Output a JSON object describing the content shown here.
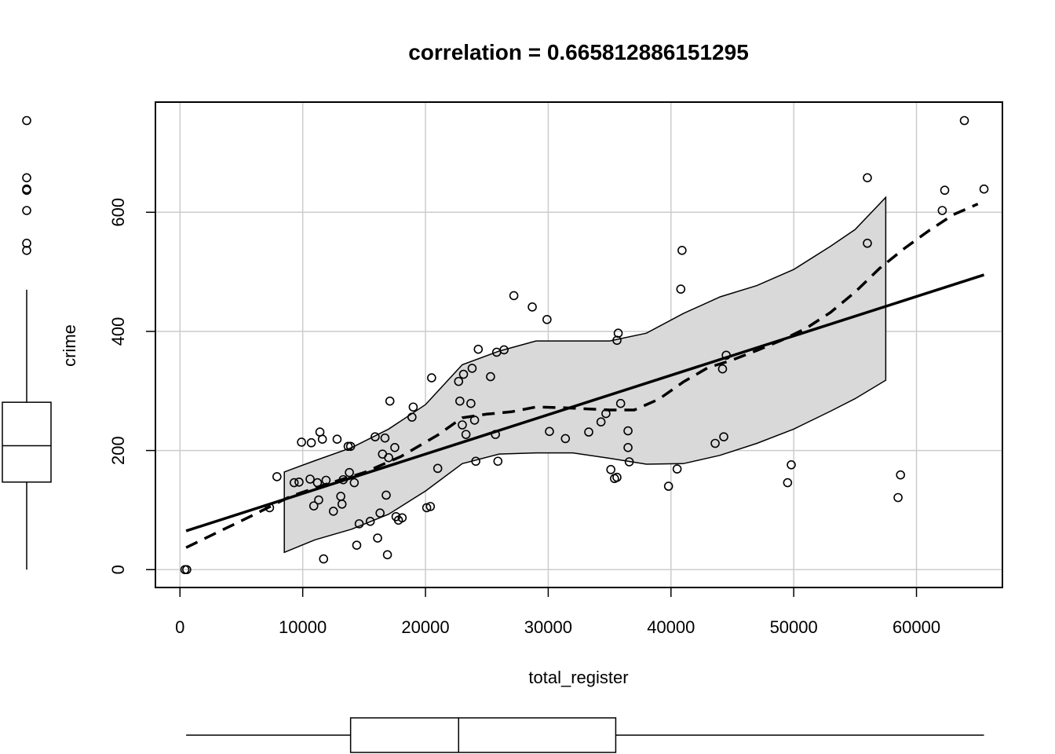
{
  "chart_data": {
    "type": "scatter",
    "title": "correlation =  0.665812886151295",
    "xlabel": "total_register",
    "ylabel": "crime",
    "xlim": [
      -2000,
      67000
    ],
    "ylim": [
      -30,
      785
    ],
    "x_ticks": [
      0,
      10000,
      20000,
      30000,
      40000,
      50000,
      60000
    ],
    "y_ticks": [
      0,
      200,
      400,
      600
    ],
    "x_tick_labels": [
      "0",
      "10000",
      "20000",
      "30000",
      "40000",
      "50000",
      "60000"
    ],
    "y_tick_labels": [
      "0",
      "200",
      "400",
      "600"
    ],
    "grid": true,
    "points": [
      [
        400,
        0
      ],
      [
        550,
        0
      ],
      [
        7300,
        104
      ],
      [
        7900,
        156
      ],
      [
        9300,
        146
      ],
      [
        9700,
        147
      ],
      [
        9900,
        214
      ],
      [
        10600,
        152
      ],
      [
        10700,
        213
      ],
      [
        10900,
        107
      ],
      [
        11200,
        146
      ],
      [
        11300,
        117
      ],
      [
        11400,
        231
      ],
      [
        11600,
        219
      ],
      [
        11700,
        18
      ],
      [
        11900,
        150
      ],
      [
        12500,
        98
      ],
      [
        12800,
        219
      ],
      [
        13100,
        123
      ],
      [
        13200,
        110
      ],
      [
        13300,
        151
      ],
      [
        13700,
        207
      ],
      [
        13900,
        207
      ],
      [
        13800,
        163
      ],
      [
        14200,
        146
      ],
      [
        14400,
        41
      ],
      [
        14600,
        77
      ],
      [
        15500,
        81
      ],
      [
        15900,
        223
      ],
      [
        16100,
        53
      ],
      [
        16300,
        95
      ],
      [
        16500,
        194
      ],
      [
        16700,
        221
      ],
      [
        16800,
        125
      ],
      [
        16900,
        25
      ],
      [
        17000,
        188
      ],
      [
        17100,
        283
      ],
      [
        17500,
        205
      ],
      [
        17600,
        89
      ],
      [
        17800,
        83
      ],
      [
        18100,
        87
      ],
      [
        18900,
        256
      ],
      [
        19000,
        273
      ],
      [
        20100,
        104
      ],
      [
        20400,
        106
      ],
      [
        20500,
        322
      ],
      [
        21000,
        170
      ],
      [
        22700,
        316
      ],
      [
        22800,
        283
      ],
      [
        23000,
        243
      ],
      [
        23100,
        328
      ],
      [
        23300,
        227
      ],
      [
        23700,
        279
      ],
      [
        23800,
        338
      ],
      [
        24000,
        251
      ],
      [
        24100,
        182
      ],
      [
        24300,
        370
      ],
      [
        25300,
        324
      ],
      [
        25700,
        227
      ],
      [
        25800,
        365
      ],
      [
        25900,
        182
      ],
      [
        26400,
        369
      ],
      [
        27200,
        460
      ],
      [
        28700,
        441
      ],
      [
        29900,
        420
      ],
      [
        30100,
        232
      ],
      [
        31400,
        220
      ],
      [
        33300,
        231
      ],
      [
        34300,
        248
      ],
      [
        34700,
        262
      ],
      [
        35100,
        168
      ],
      [
        35400,
        153
      ],
      [
        35600,
        155
      ],
      [
        35600,
        385
      ],
      [
        35700,
        397
      ],
      [
        35900,
        279
      ],
      [
        36500,
        233
      ],
      [
        36500,
        205
      ],
      [
        36600,
        181
      ],
      [
        39800,
        140
      ],
      [
        40500,
        169
      ],
      [
        40800,
        471
      ],
      [
        40900,
        536
      ],
      [
        43600,
        212
      ],
      [
        44200,
        337
      ],
      [
        44300,
        223
      ],
      [
        44500,
        360
      ],
      [
        49500,
        146
      ],
      [
        49800,
        176
      ],
      [
        56000,
        658
      ],
      [
        56000,
        548
      ],
      [
        58500,
        121
      ],
      [
        58700,
        159
      ],
      [
        62100,
        603
      ],
      [
        62300,
        637
      ],
      [
        63900,
        754
      ],
      [
        65500,
        639
      ]
    ],
    "regression_line": {
      "x": [
        500,
        65500
      ],
      "y": [
        65,
        495
      ]
    },
    "loess_line": {
      "x": [
        500,
        3000,
        6000,
        9000,
        12000,
        15000,
        18000,
        21000,
        23000,
        25000,
        27000,
        29000,
        31000,
        33000,
        35000,
        37000,
        39000,
        41000,
        43000,
        45000,
        47000,
        49000,
        51000,
        53000,
        55000,
        57000,
        59000,
        61000,
        63000,
        65000
      ],
      "y": [
        37,
        62,
        92,
        123,
        144,
        163,
        190,
        226,
        255,
        261,
        265,
        273,
        272,
        270,
        268,
        268,
        286,
        315,
        339,
        352,
        368,
        385,
        405,
        432,
        466,
        506,
        539,
        569,
        596,
        614
      ]
    },
    "confidence_band": {
      "x": [
        8500,
        11000,
        14000,
        17000,
        20000,
        23000,
        26000,
        29000,
        32000,
        35000,
        38000,
        41000,
        44000,
        47000,
        50000,
        53000,
        55000,
        57500
      ],
      "upper": [
        164,
        183,
        205,
        236,
        277,
        344,
        367,
        384,
        384,
        384,
        397,
        430,
        458,
        477,
        504,
        543,
        571,
        625
      ],
      "lower": [
        29,
        50,
        68,
        93,
        132,
        178,
        194,
        196,
        196,
        187,
        177,
        178,
        192,
        212,
        236,
        266,
        287,
        318
      ]
    },
    "y_boxplot": {
      "min": 0,
      "q1": 147,
      "median": 208,
      "q3": 281,
      "max": 470,
      "outliers": [
        536,
        548,
        603,
        637,
        639,
        658,
        754
      ]
    },
    "x_boxplot": {
      "min": 500,
      "q1": 13900,
      "median": 22700,
      "q3": 35500,
      "max": 65500,
      "outliers": []
    }
  }
}
